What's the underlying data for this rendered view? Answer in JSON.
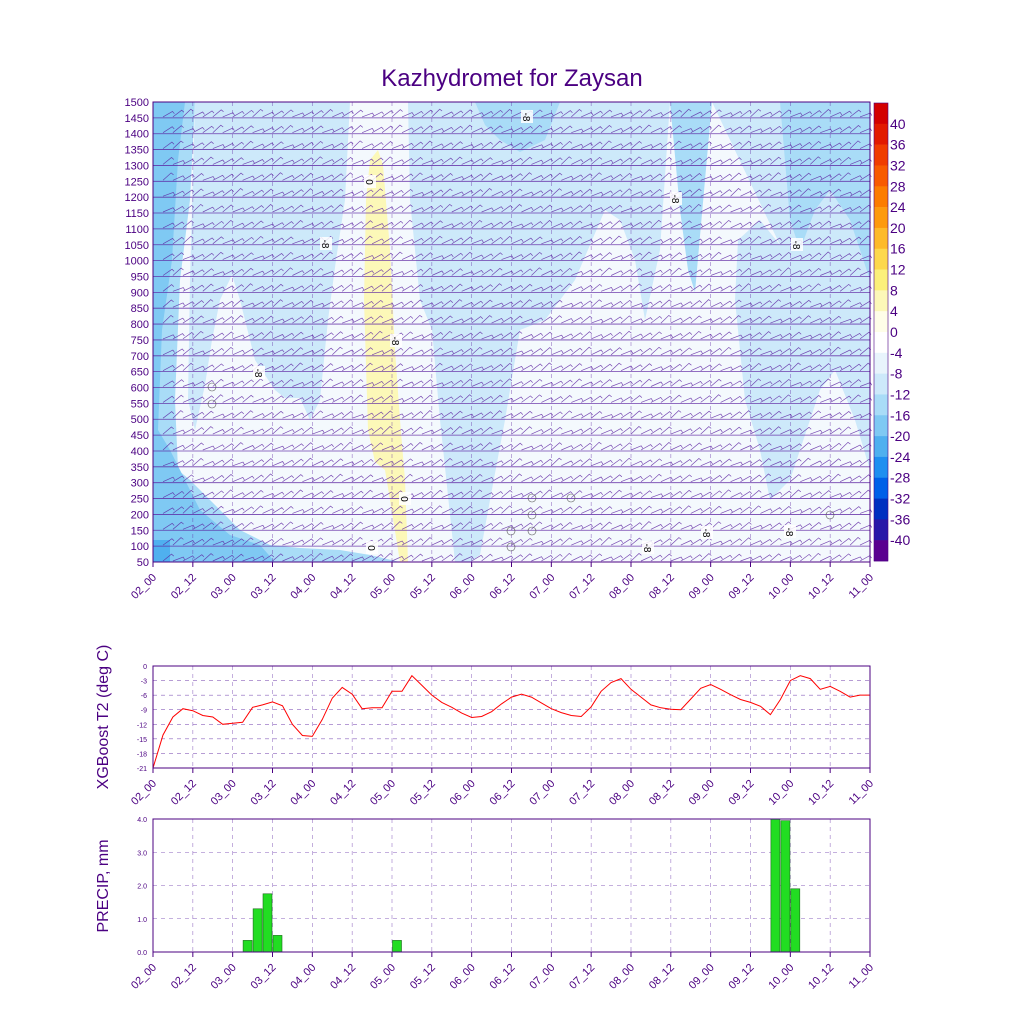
{
  "title": "Kazhydromet for Zaysan",
  "x_ticks": [
    "02_00",
    "02_12",
    "03_00",
    "03_12",
    "04_00",
    "04_12",
    "05_00",
    "05_12",
    "06_00",
    "06_12",
    "07_00",
    "07_12",
    "08_00",
    "08_12",
    "09_00",
    "09_12",
    "10_00",
    "10_12",
    "11_00"
  ],
  "colors": {
    "frame": "#4b0082",
    "barb": "#5a1fa0",
    "t2_line": "#ff0000",
    "precip_bar": "#22dd22",
    "precip_stroke": "#1a6a1a"
  },
  "chart_data": [
    {
      "type": "heatmap",
      "name": "temperature-cross-section",
      "title": "Kazhydromet for Zaysan",
      "y_ticks": [
        "1500",
        "1450",
        "1400",
        "1350",
        "1300",
        "1250",
        "1200",
        "1150",
        "1100",
        "1050",
        "1000",
        "950",
        "900",
        "850",
        "800",
        "750",
        "700",
        "650",
        "600",
        "550",
        "500",
        "450",
        "400",
        "350",
        "300",
        "250",
        "200",
        "150",
        "100",
        "50"
      ],
      "ylim": [
        50,
        1500
      ],
      "colorbar": {
        "labels": [
          "40",
          "36",
          "32",
          "28",
          "24",
          "20",
          "16",
          "12",
          "8",
          "4",
          "0",
          "-4",
          "-8",
          "-12",
          "-16",
          "-20",
          "-24",
          "-28",
          "-32",
          "-36",
          "-40"
        ],
        "colors": [
          "#d30000",
          "#e21a00",
          "#f03c00",
          "#f85a00",
          "#fc7c00",
          "#fd9a0e",
          "#fdba2a",
          "#fdd84c",
          "#fbf07a",
          "#fcf8b8",
          "#fefee8",
          "#ffffff",
          "#e8f4fc",
          "#cde9fa",
          "#a9dcf7",
          "#7fc9f3",
          "#4fb0ef",
          "#1f8ff0",
          "#0060e8",
          "#0030c0",
          "#2818a8",
          "#5a0090"
        ]
      },
      "contour_labels": [
        "-8",
        "0",
        "-8",
        "-8",
        "-8",
        "-8",
        "-8",
        "-8",
        "-8",
        "0",
        "0",
        "-8"
      ]
    },
    {
      "type": "line",
      "name": "xgboost-t2",
      "ylabel": "XGBoost T2 (deg C)",
      "y_ticks": [
        "0",
        "-3",
        "-6",
        "-9",
        "-12",
        "-15",
        "-18",
        "-21"
      ],
      "ylim": [
        -21,
        0
      ],
      "x": [
        0,
        1,
        2,
        3,
        4,
        5,
        6,
        7,
        8,
        9,
        10,
        11,
        12,
        13,
        14,
        15,
        16,
        17,
        18,
        19,
        20,
        21,
        22,
        23,
        24,
        25,
        26,
        27,
        28,
        29,
        30,
        31,
        32,
        33,
        34,
        35,
        36,
        37,
        38,
        39,
        40,
        41,
        42,
        43,
        44,
        45,
        46,
        47,
        48,
        49,
        50,
        51,
        52,
        53,
        54,
        55,
        56,
        57,
        58,
        59,
        60,
        61,
        62,
        63,
        64,
        65,
        66,
        67,
        68,
        69,
        70,
        71,
        72
      ],
      "values": [
        -21,
        -14.2,
        -10.5,
        -8.8,
        -9.2,
        -10.2,
        -10.5,
        -12.0,
        -11.8,
        -11.6,
        -8.5,
        -8.0,
        -7.4,
        -8.2,
        -12.0,
        -14.3,
        -14.5,
        -11.0,
        -6.6,
        -4.4,
        -5.8,
        -8.8,
        -8.6,
        -8.6,
        -5.2,
        -5.2,
        -2.0,
        -4.0,
        -6.0,
        -7.5,
        -8.5,
        -9.7,
        -10.6,
        -10.4,
        -9.4,
        -7.8,
        -6.4,
        -5.8,
        -6.4,
        -7.6,
        -8.8,
        -9.6,
        -10.2,
        -10.4,
        -8.4,
        -5.2,
        -3.4,
        -2.6,
        -4.8,
        -6.4,
        -8.0,
        -8.6,
        -8.9,
        -9.0,
        -6.8,
        -4.6,
        -3.8,
        -4.8,
        -5.9,
        -6.9,
        -7.5,
        -8.3,
        -10.0,
        -6.9,
        -3.0,
        -2.0,
        -2.6,
        -4.8,
        -4.2,
        -5.2,
        -6.4,
        -6.0,
        -6.0
      ]
    },
    {
      "type": "bar",
      "name": "precip",
      "ylabel": "PRECIP, mm",
      "y_ticks": [
        "4.0",
        "3.0",
        "2.0",
        "1.0",
        "0.0"
      ],
      "ylim": [
        0,
        4.0
      ],
      "x": [
        9.5,
        10.5,
        11.5,
        12.5,
        24.5,
        62.5,
        63.5,
        64.5
      ],
      "values": [
        0.35,
        1.3,
        1.75,
        0.5,
        0.35,
        4.0,
        3.95,
        1.9
      ]
    }
  ]
}
